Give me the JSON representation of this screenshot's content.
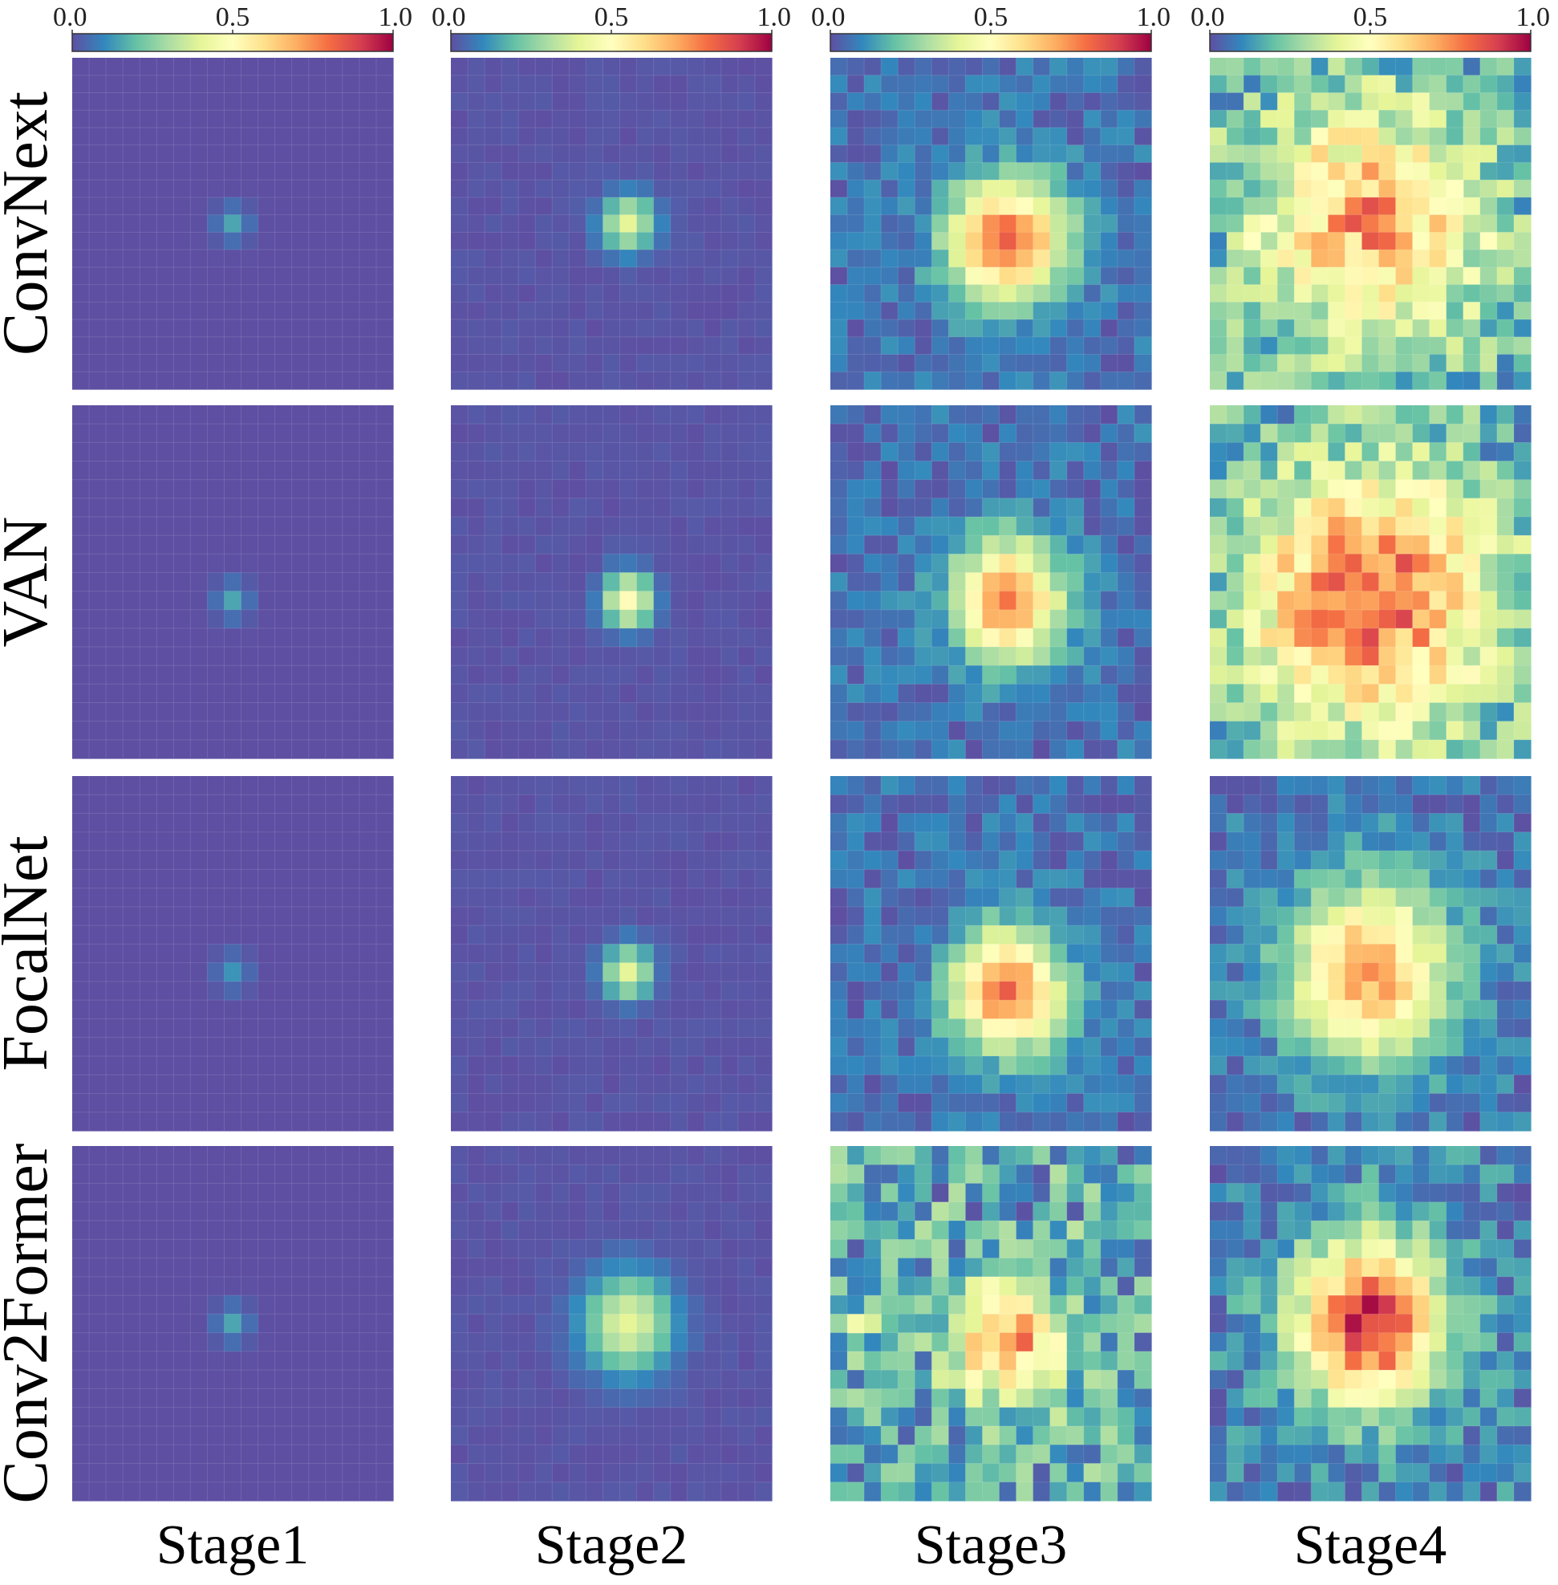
{
  "chart_data": {
    "type": "heatmap",
    "title": "",
    "row_labels": [
      "ConvNext",
      "VAN",
      "FocalNet",
      "Conv2Former"
    ],
    "column_labels": [
      "Stage1",
      "Stage2",
      "Stage3",
      "Stage4"
    ],
    "grid_cells": 19,
    "colormap": "Spectral_r",
    "colorbar": {
      "range": [
        0.0,
        1.0
      ],
      "ticks": [
        "0.0",
        "0.5",
        "1.0"
      ]
    },
    "colors": {
      "background": "#ffffff",
      "low": "#5e4fa2",
      "mid": "#ffffbf",
      "high": "#9e0142"
    },
    "panels": [
      {
        "row": "ConvNext",
        "col": "Stage1",
        "peak": 0.15,
        "spread": 0.7,
        "center": [
          9,
          9
        ],
        "noise": 0.0,
        "bright_cells": []
      },
      {
        "row": "ConvNext",
        "col": "Stage2",
        "peak": 0.4,
        "spread": 1.1,
        "center": [
          9,
          10
        ],
        "noise": 0.02,
        "bright_cells": []
      },
      {
        "row": "ConvNext",
        "col": "Stage3",
        "peak": 0.75,
        "spread": 2.4,
        "center": [
          10,
          10
        ],
        "noise": 0.12,
        "bright_cells": []
      },
      {
        "row": "ConvNext",
        "col": "Stage4",
        "peak": 0.55,
        "spread": 4.5,
        "center": [
          9,
          9
        ],
        "noise": 0.3,
        "bright_cells": [
          [
            10,
            2,
            0.5
          ],
          [
            7,
            14,
            0.5
          ],
          [
            13,
            5,
            0.45
          ]
        ]
      },
      {
        "row": "VAN",
        "col": "Stage1",
        "peak": 0.15,
        "spread": 0.7,
        "center": [
          10,
          9
        ],
        "noise": 0.0,
        "bright_cells": []
      },
      {
        "row": "VAN",
        "col": "Stage2",
        "peak": 0.5,
        "spread": 1.0,
        "center": [
          10,
          10
        ],
        "noise": 0.02,
        "bright_cells": []
      },
      {
        "row": "VAN",
        "col": "Stage3",
        "peak": 0.7,
        "spread": 2.2,
        "center": [
          10,
          10
        ],
        "noise": 0.12,
        "bright_cells": []
      },
      {
        "row": "VAN",
        "col": "Stage4",
        "peak": 0.68,
        "spread": 4.8,
        "center": [
          10,
          9
        ],
        "noise": 0.28,
        "bright_cells": [
          [
            10,
            7,
            0.7
          ],
          [
            10,
            9,
            0.72
          ]
        ]
      },
      {
        "row": "FocalNet",
        "col": "Stage1",
        "peak": 0.12,
        "spread": 0.7,
        "center": [
          10,
          9
        ],
        "noise": 0.0,
        "bright_cells": []
      },
      {
        "row": "FocalNet",
        "col": "Stage2",
        "peak": 0.4,
        "spread": 1.0,
        "center": [
          10,
          10
        ],
        "noise": 0.02,
        "bright_cells": []
      },
      {
        "row": "FocalNet",
        "col": "Stage3",
        "peak": 0.74,
        "spread": 2.2,
        "center": [
          11,
          10
        ],
        "noise": 0.12,
        "bright_cells": []
      },
      {
        "row": "FocalNet",
        "col": "Stage4",
        "peak": 0.65,
        "spread": 3.2,
        "center": [
          10,
          9
        ],
        "noise": 0.14,
        "bright_cells": []
      },
      {
        "row": "Conv2Former",
        "col": "Stage1",
        "peak": 0.15,
        "spread": 0.7,
        "center": [
          9,
          9
        ],
        "noise": 0.0,
        "bright_cells": []
      },
      {
        "row": "Conv2Former",
        "col": "Stage2",
        "peak": 0.4,
        "spread": 1.8,
        "center": [
          9,
          10
        ],
        "noise": 0.02,
        "bright_cells": []
      },
      {
        "row": "Conv2Former",
        "col": "Stage3",
        "peak": 0.55,
        "spread": 2.2,
        "center": [
          10,
          10
        ],
        "noise": 0.28,
        "bright_cells": [
          [
            9,
            1,
            0.45
          ],
          [
            9,
            2,
            0.38
          ],
          [
            8,
            10,
            0.55
          ],
          [
            10,
            9,
            0.6
          ]
        ]
      },
      {
        "row": "Conv2Former",
        "col": "Stage4",
        "peak": 0.85,
        "spread": 3.0,
        "center": [
          9,
          9
        ],
        "noise": 0.18,
        "bright_cells": [
          [
            9,
            9,
            0.85
          ]
        ]
      }
    ]
  }
}
